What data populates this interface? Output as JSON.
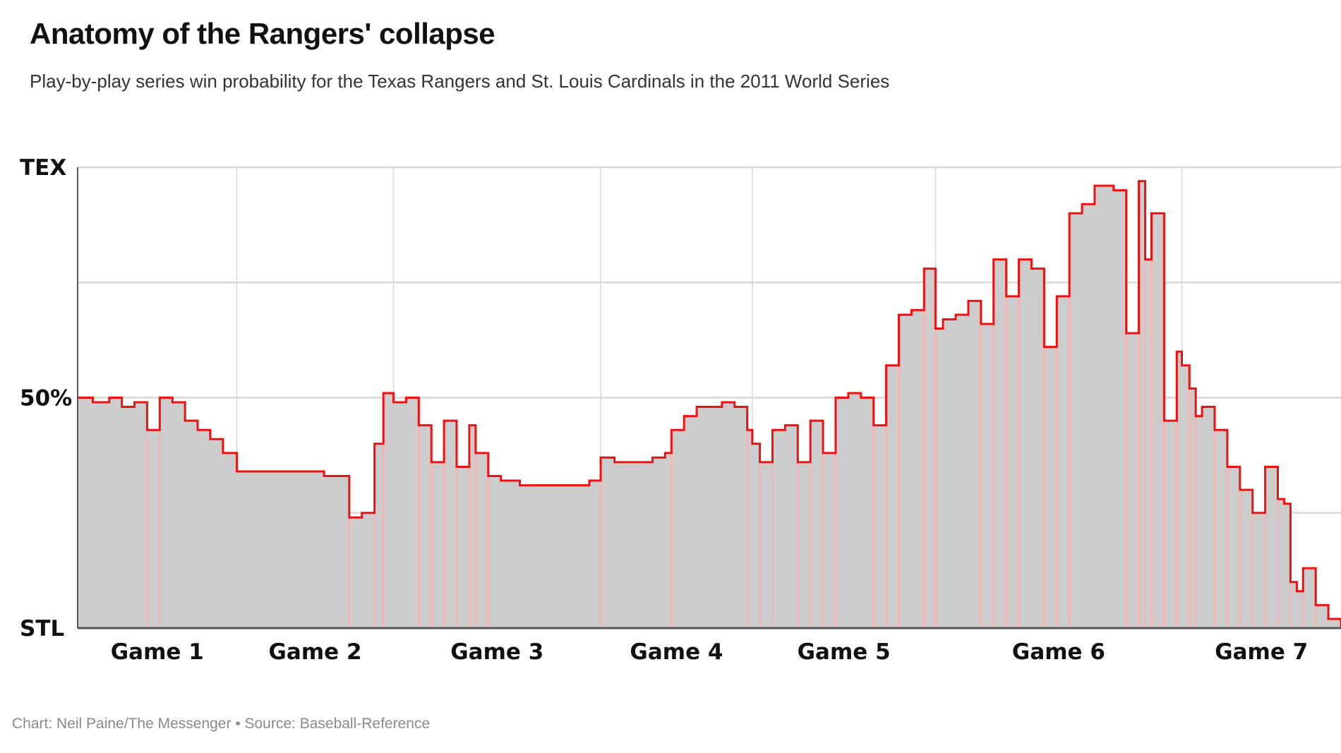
{
  "title": "Anatomy of the Rangers' collapse",
  "subtitle": "Play-by-play series win probability for the Texas Rangers and St. Louis Cardinals in the 2011 World Series",
  "footer": "Chart: Neil Paine/The Messenger • Source: Baseball-Reference",
  "colors": {
    "line": "#ee1111",
    "area": "#cccccc",
    "swing": "#ffb3b3",
    "grid": "#d9d9d9",
    "axis": "#555555"
  },
  "chart_data": {
    "type": "area",
    "ylim": [
      0,
      1
    ],
    "y_tick_labels": [
      {
        "value": 1,
        "label": "TEX"
      },
      {
        "value": 0.5,
        "label": "50%"
      },
      {
        "value": 0,
        "label": "STL"
      }
    ],
    "gridlines": [
      0.25,
      0.5,
      0.75,
      1
    ],
    "grid": true,
    "xlim": [
      0,
      100
    ],
    "games": [
      {
        "label": "Game 1",
        "start": 0,
        "end": 12.6
      },
      {
        "label": "Game 2",
        "start": 12.6,
        "end": 25
      },
      {
        "label": "Game 3",
        "start": 25,
        "end": 41.4
      },
      {
        "label": "Game 4",
        "start": 41.4,
        "end": 53.4
      },
      {
        "label": "Game 5",
        "start": 53.4,
        "end": 67.9
      },
      {
        "label": "Game 6",
        "start": 67.9,
        "end": 87.4
      },
      {
        "label": "Game 7",
        "start": 87.4,
        "end": 100
      }
    ],
    "x": [
      0,
      1.2,
      2.5,
      3.5,
      4.5,
      5.5,
      6.5,
      7.5,
      8.5,
      9.5,
      10.5,
      11.5,
      12.6,
      13.5,
      14.5,
      15.5,
      16.5,
      17.5,
      18.5,
      19.5,
      20.5,
      21.5,
      22.5,
      23.5,
      24.2,
      25,
      26,
      27,
      28,
      29,
      30,
      31,
      31.5,
      32.5,
      33.5,
      34,
      35,
      35.5,
      36.5,
      37.5,
      38.5,
      39.5,
      40.5,
      41.4,
      42.5,
      43.5,
      44.5,
      45.5,
      46.5,
      47,
      48,
      49,
      50,
      51,
      52,
      53,
      53.4,
      54,
      55,
      56,
      57,
      58,
      59,
      60,
      61,
      62,
      63,
      64,
      65,
      66,
      67,
      67.9,
      68.5,
      69.5,
      70.5,
      71.5,
      72.5,
      73.5,
      74.5,
      75.5,
      76.5,
      77.5,
      78.5,
      79.5,
      80.5,
      81.5,
      82,
      83,
      84,
      84.5,
      85,
      86,
      87,
      87.4,
      88,
      88.5,
      89,
      90,
      91,
      92,
      93,
      94,
      95,
      95.5,
      96,
      96.5,
      97,
      98,
      99,
      100
    ],
    "y": [
      0.5,
      0.49,
      0.5,
      0.48,
      0.49,
      0.43,
      0.5,
      0.49,
      0.45,
      0.43,
      0.41,
      0.38,
      0.34,
      0.34,
      0.34,
      0.34,
      0.34,
      0.34,
      0.34,
      0.33,
      0.33,
      0.24,
      0.25,
      0.4,
      0.51,
      0.49,
      0.5,
      0.44,
      0.36,
      0.45,
      0.35,
      0.44,
      0.38,
      0.33,
      0.32,
      0.32,
      0.31,
      0.31,
      0.31,
      0.31,
      0.31,
      0.31,
      0.32,
      0.37,
      0.36,
      0.36,
      0.36,
      0.37,
      0.38,
      0.43,
      0.46,
      0.48,
      0.48,
      0.49,
      0.48,
      0.43,
      0.4,
      0.36,
      0.43,
      0.44,
      0.36,
      0.45,
      0.38,
      0.5,
      0.51,
      0.5,
      0.44,
      0.57,
      0.68,
      0.69,
      0.78,
      0.65,
      0.67,
      0.68,
      0.71,
      0.66,
      0.8,
      0.72,
      0.8,
      0.78,
      0.61,
      0.72,
      0.9,
      0.92,
      0.96,
      0.96,
      0.95,
      0.64,
      0.97,
      0.8,
      0.9,
      0.45,
      0.6,
      0.57,
      0.52,
      0.46,
      0.48,
      0.43,
      0.35,
      0.3,
      0.25,
      0.35,
      0.28,
      0.27,
      0.1,
      0.08,
      0.13,
      0.05,
      0.02,
      0
    ]
  }
}
